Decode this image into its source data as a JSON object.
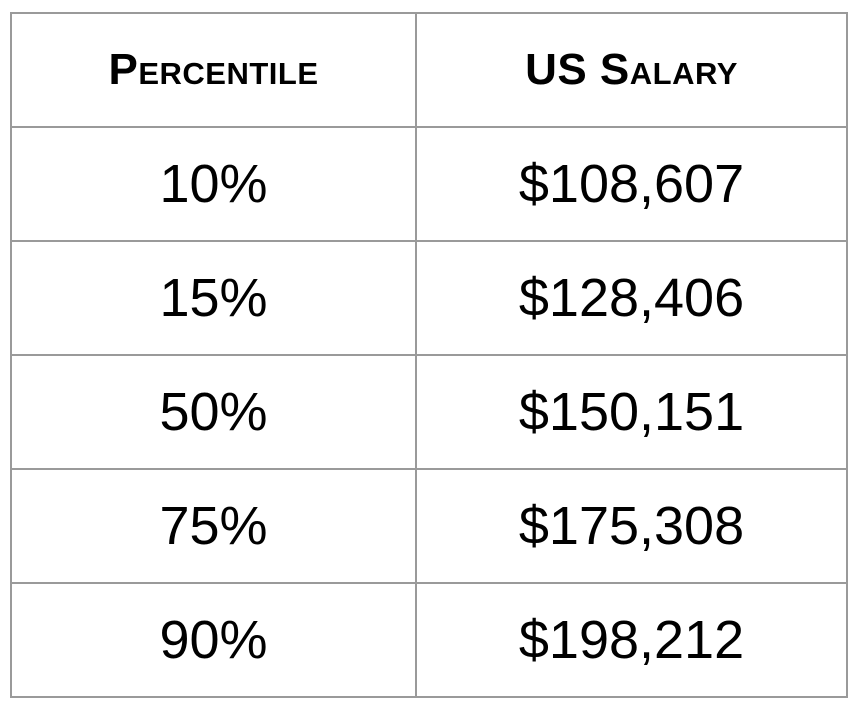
{
  "chart_data": {
    "type": "table",
    "columns": [
      "Percentile",
      "US Salary"
    ],
    "rows": [
      [
        "10%",
        "$108,607"
      ],
      [
        "15%",
        "$128,406"
      ],
      [
        "50%",
        "$150,151"
      ],
      [
        "75%",
        "$175,308"
      ],
      [
        "90%",
        "$198,212"
      ]
    ]
  },
  "colors": {
    "border": "#9a9a9a",
    "text": "#000000",
    "background": "#ffffff"
  }
}
